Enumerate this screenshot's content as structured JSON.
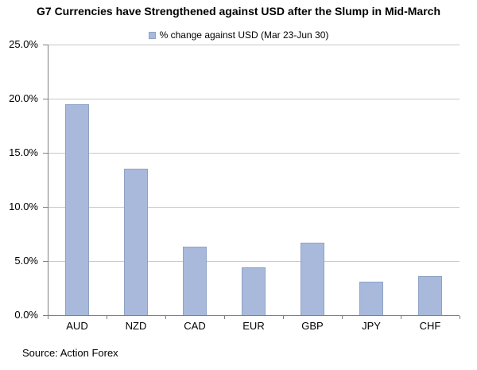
{
  "page": {
    "background": "#ffffff"
  },
  "source": "Source: Action Forex",
  "colors": {
    "bar_fill": "#a9b9dc",
    "bar_border": "#8ea2c6",
    "gridline": "#c8c8c8",
    "axis": "#808080",
    "text": "#000000",
    "background": "#ffffff"
  },
  "chart_data": {
    "type": "bar",
    "title": "G7 Currencies have Strengthened against USD after the Slump in Mid-March",
    "legend": [
      "% change against USD (Mar 23-Jun 30)"
    ],
    "legend_position": "top",
    "categories": [
      "AUD",
      "NZD",
      "CAD",
      "EUR",
      "GBP",
      "JPY",
      "CHF"
    ],
    "values": [
      19.5,
      13.5,
      6.3,
      4.4,
      6.7,
      3.1,
      3.6
    ],
    "xlabel": "",
    "ylabel": "",
    "ylim": [
      0,
      25
    ],
    "ytick_step": 5,
    "ytick_labels": [
      "0.0%",
      "5.0%",
      "10.0%",
      "15.0%",
      "20.0%",
      "25.0%"
    ],
    "grid": true
  }
}
